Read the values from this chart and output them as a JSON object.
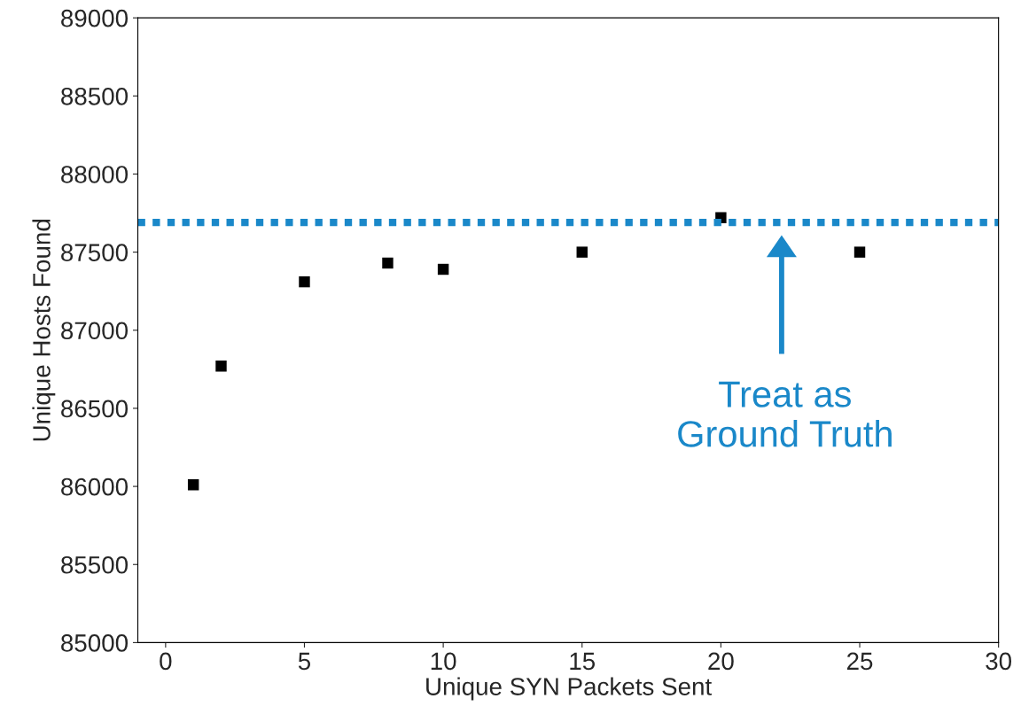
{
  "chart_data": {
    "type": "scatter",
    "xlabel": "Unique SYN Packets Sent",
    "ylabel": "Unique Hosts Found",
    "x": [
      1,
      2,
      5,
      8,
      10,
      15,
      20,
      25
    ],
    "series": [
      {
        "color": "#000000",
        "values": [
          86010,
          86770,
          87310,
          87430,
          87390,
          87500,
          87720,
          87500
        ]
      }
    ],
    "marker": "square",
    "xlim": [
      -1,
      30
    ],
    "xticks": [
      0,
      5,
      10,
      15,
      20,
      25,
      30
    ],
    "ylim": [
      85000,
      89000
    ],
    "yticks": [
      85000,
      85500,
      86000,
      86500,
      87000,
      87500,
      88000,
      88500,
      89000
    ],
    "grid": false,
    "legend": false,
    "ref_lines": [
      {
        "axis": "y",
        "value": 87690,
        "color": "#1a88c9",
        "line_style": "dotted"
      }
    ],
    "annotations": [
      "Treat as\nGround Truth"
    ]
  }
}
